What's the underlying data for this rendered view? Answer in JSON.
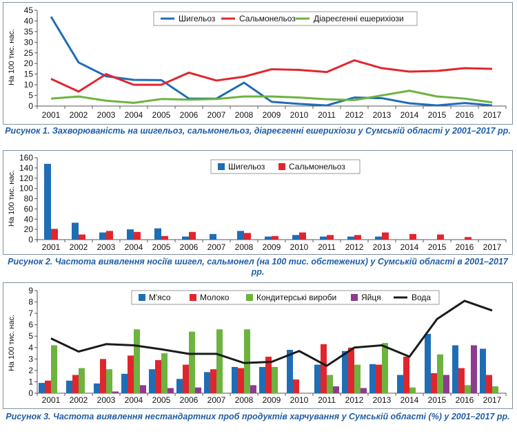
{
  "chart_data": [
    {
      "type": "line",
      "ylabel": "На 100 тис. нас.",
      "ylim": [
        0,
        45
      ],
      "yticks": [
        0,
        5,
        10,
        15,
        20,
        25,
        30,
        35,
        40,
        45
      ],
      "categories": [
        "2001",
        "2002",
        "2003",
        "2004",
        "2005",
        "2006",
        "2007",
        "2008",
        "2009",
        "2010",
        "2011",
        "2012",
        "2013",
        "2014",
        "2015",
        "2016",
        "2017"
      ],
      "legend_position": "top-center",
      "series": [
        {
          "name": "Шигельоз",
          "color": "#1f6db5",
          "values": [
            42,
            20.5,
            14,
            12.3,
            12.2,
            3.5,
            3.5,
            11,
            2,
            1,
            0.3,
            4,
            3.7,
            1.3,
            0.3,
            1.4,
            0.3
          ]
        },
        {
          "name": "Сальмонельоз",
          "color": "#e0262d",
          "values": [
            12.8,
            6.8,
            15,
            10,
            10,
            15.7,
            12,
            13.8,
            17.3,
            17,
            16,
            21.5,
            17.8,
            16.2,
            16.5,
            17.8,
            17.5
          ]
        },
        {
          "name": "Діареєгенні ешерихіози",
          "color": "#6cb33f",
          "values": [
            3.5,
            4.5,
            2.5,
            1.5,
            3.3,
            3,
            3.3,
            4.5,
            4.5,
            4,
            3.2,
            2.8,
            5,
            7.2,
            4.5,
            3.5,
            1.7
          ]
        }
      ],
      "caption": "Рисунок 1.  Захворюваність на шигельоз, сальмонельоз, діареєгенні ешерихіози у Сумській області у 2001–2017 рр."
    },
    {
      "type": "bar",
      "ylabel": "На 100 тис. нас.",
      "ylim": [
        0,
        160
      ],
      "yticks": [
        0,
        20,
        40,
        60,
        80,
        100,
        120,
        140,
        160
      ],
      "categories": [
        "2001",
        "2002",
        "2003",
        "2004",
        "2005",
        "2006",
        "2007",
        "2008",
        "2009",
        "2010",
        "2011",
        "2012",
        "2013",
        "2014",
        "2015",
        "2016",
        "2017"
      ],
      "legend_position": "top-center",
      "series": [
        {
          "name": "Шигельоз",
          "color": "#1f6db5",
          "values": [
            148,
            33,
            14,
            20,
            22,
            6,
            11,
            17,
            6,
            9,
            6,
            6,
            6,
            0,
            0,
            0,
            0
          ]
        },
        {
          "name": "Сальмонельоз",
          "color": "#e0262d",
          "values": [
            21,
            10,
            17,
            15,
            7,
            15,
            0,
            13,
            7,
            14,
            9,
            9,
            14,
            11,
            10,
            5,
            0
          ]
        }
      ],
      "caption": "Рисунок 2.  Частота виявлення носіїв шигел, сальмонел (на 100 тис. обстежених) у Сумській області в 2001–2017 рр."
    },
    {
      "type": "bar",
      "ylabel": "На 100 тис. нас.",
      "ylim": [
        0,
        9
      ],
      "yticks": [
        0,
        1,
        2,
        3,
        4,
        5,
        6,
        7,
        8,
        9
      ],
      "categories": [
        "2001",
        "2002",
        "2003",
        "2004",
        "2005",
        "2006",
        "2007",
        "2008",
        "2009",
        "2010",
        "2011",
        "2012",
        "2013",
        "2014",
        "2015",
        "2016",
        "2017"
      ],
      "legend_position": "top-center",
      "series": [
        {
          "name": "М'ясо",
          "color": "#1f6db5",
          "values": [
            0.9,
            1.1,
            0.85,
            1.7,
            2.1,
            1.25,
            1.85,
            2.3,
            2.3,
            3.8,
            2.5,
            3.7,
            2.55,
            1.6,
            5.2,
            4.2,
            3.9
          ]
        },
        {
          "name": "Молоко",
          "color": "#e0262d",
          "values": [
            1.1,
            1.6,
            3.0,
            3.3,
            2.9,
            2.5,
            2.1,
            2.2,
            3.2,
            1.2,
            4.3,
            4.0,
            2.5,
            3.2,
            1.75,
            2.2,
            1.6
          ]
        },
        {
          "name": "Кондитерські вироби",
          "color": "#6cb33f",
          "values": [
            4.2,
            2.2,
            2.1,
            5.6,
            3.5,
            5.4,
            5.6,
            5.6,
            2.3,
            0,
            1.6,
            2.5,
            4.4,
            0.5,
            3.4,
            0.7,
            0.6
          ]
        },
        {
          "name": "Яйця",
          "color": "#8e3b91",
          "values": [
            0,
            0,
            0.15,
            0.7,
            0.45,
            0.5,
            0,
            0.7,
            0,
            0,
            0.6,
            0.45,
            0,
            0,
            1.6,
            4.2,
            0
          ]
        },
        {
          "name": "Вода",
          "color": "#1a1a1a",
          "type": "line",
          "values": [
            4.8,
            3.65,
            4.3,
            4.2,
            3.85,
            3.45,
            3.45,
            2.65,
            2.75,
            3.7,
            2.4,
            4.0,
            4.2,
            3.2,
            6.5,
            8.1,
            7.25
          ]
        }
      ],
      "caption": "Рисунок 3. Частота виявлення нестандартних проб продуктів харчування у Сумській області (%) у 2001–2017 рр."
    }
  ]
}
